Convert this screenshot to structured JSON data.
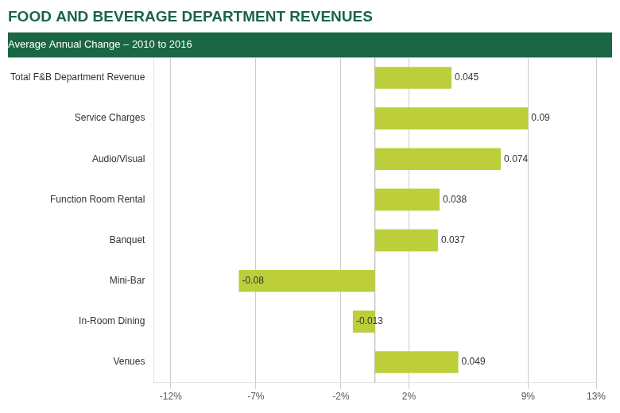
{
  "chart_data": {
    "type": "bar",
    "orientation": "horizontal",
    "title": "FOOD AND BEVERAGE DEPARTMENT REVENUES",
    "subtitle": "Average Annual Change – 2010 to 2016",
    "categories": [
      "Total F&B Department Revenue",
      "Service Charges",
      "Audio/Visual",
      "Function Room Rental",
      "Banquet",
      "Mini-Bar",
      "In-Room Dining",
      "Venues"
    ],
    "values": [
      0.045,
      0.09,
      0.074,
      0.038,
      0.037,
      -0.08,
      -0.013,
      0.049
    ],
    "color": "#bccf3a",
    "xlim": [
      -0.13,
      0.13
    ],
    "xticks": [
      {
        "value": -0.12,
        "label": "-12%"
      },
      {
        "value": -0.07,
        "label": "-7%"
      },
      {
        "value": -0.02,
        "label": "-2%"
      },
      {
        "value": 0.02,
        "label": "2%"
      },
      {
        "value": 0.09,
        "label": "9%"
      },
      {
        "value": 0.13,
        "label": "13%"
      }
    ],
    "grid": true,
    "data_labels": true
  }
}
